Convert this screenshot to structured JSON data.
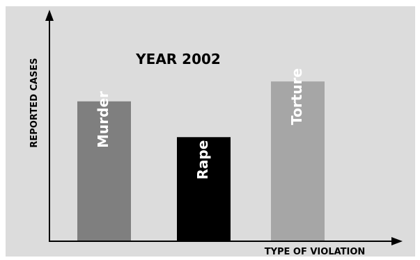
{
  "chart_data": {
    "type": "bar",
    "title": "YEAR 2002",
    "xlabel": "TYPE OF VIOLATION",
    "ylabel": "REPORTED CASES",
    "categories": [
      "Murder",
      "Rape",
      "Torture"
    ],
    "values": [
      70,
      52,
      80
    ],
    "ylim": [
      0,
      100
    ],
    "grid": false,
    "legend": "none",
    "colors": {
      "background": "#dcdcdc",
      "axis": "#000000",
      "bars": [
        "#7f7f7f",
        "#000000",
        "#a6a6a6"
      ],
      "bar_label": "#ffffff"
    }
  }
}
